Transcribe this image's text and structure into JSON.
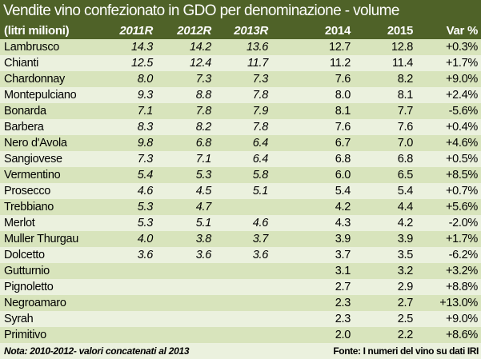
{
  "title": "Vendite vino confezionato in GDO per denominazione - volume",
  "header": {
    "unit": "(litri milioni)",
    "cols": [
      "2011R",
      "2012R",
      "2013R",
      "2014",
      "2015",
      "Var %"
    ]
  },
  "rows": [
    {
      "name": "Lambrusco",
      "v": [
        "14.3",
        "14.2",
        "13.6",
        "12.7",
        "12.8",
        "+0.3%"
      ]
    },
    {
      "name": "Chianti",
      "v": [
        "12.5",
        "12.4",
        "11.7",
        "11.2",
        "11.4",
        "+1.7%"
      ]
    },
    {
      "name": "Chardonnay",
      "v": [
        "8.0",
        "7.3",
        "7.3",
        "7.6",
        "8.2",
        "+9.0%"
      ]
    },
    {
      "name": "Montepulciano",
      "v": [
        "9.3",
        "8.8",
        "7.8",
        "8.0",
        "8.1",
        "+2.4%"
      ]
    },
    {
      "name": "Bonarda",
      "v": [
        "7.1",
        "7.8",
        "7.9",
        "8.1",
        "7.7",
        "-5.6%"
      ]
    },
    {
      "name": "Barbera",
      "v": [
        "8.3",
        "8.2",
        "7.8",
        "7.6",
        "7.6",
        "+0.4%"
      ]
    },
    {
      "name": "Nero d'Avola",
      "v": [
        "9.8",
        "6.8",
        "6.4",
        "6.7",
        "7.0",
        "+4.6%"
      ]
    },
    {
      "name": "Sangiovese",
      "v": [
        "7.3",
        "7.1",
        "6.4",
        "6.8",
        "6.8",
        "+0.5%"
      ]
    },
    {
      "name": "Vermentino",
      "v": [
        "5.4",
        "5.3",
        "5.8",
        "6.0",
        "6.5",
        "+8.5%"
      ]
    },
    {
      "name": "Prosecco",
      "v": [
        "4.6",
        "4.5",
        "5.1",
        "5.4",
        "5.4",
        "+0.7%"
      ]
    },
    {
      "name": "Trebbiano",
      "v": [
        "5.3",
        "4.7",
        "",
        "4.2",
        "4.4",
        "+5.6%"
      ]
    },
    {
      "name": "Merlot",
      "v": [
        "5.3",
        "5.1",
        "4.6",
        "4.3",
        "4.2",
        "-2.0%"
      ]
    },
    {
      "name": "Muller Thurgau",
      "v": [
        "4.0",
        "3.8",
        "3.7",
        "3.9",
        "3.9",
        "+1.7%"
      ]
    },
    {
      "name": "Dolcetto",
      "v": [
        "3.6",
        "3.6",
        "3.6",
        "3.7",
        "3.5",
        "-6.2%"
      ]
    },
    {
      "name": "Gutturnio",
      "v": [
        "",
        "",
        "",
        "3.1",
        "3.2",
        "+3.2%"
      ]
    },
    {
      "name": "Pignoletto",
      "v": [
        "",
        "",
        "",
        "2.7",
        "2.9",
        "+8.8%"
      ]
    },
    {
      "name": "Negroamaro",
      "v": [
        "",
        "",
        "",
        "2.3",
        "2.7",
        "+13.0%"
      ]
    },
    {
      "name": "Syrah",
      "v": [
        "",
        "",
        "",
        "2.3",
        "2.5",
        "+9.0%"
      ]
    },
    {
      "name": "Primitivo",
      "v": [
        "",
        "",
        "",
        "2.0",
        "2.2",
        "+8.6%"
      ]
    }
  ],
  "footer": {
    "note": "Nota: 2010-2012- valori concatenati al 2013",
    "source": "Fonte: I numeri del vino su dati IRI"
  }
}
